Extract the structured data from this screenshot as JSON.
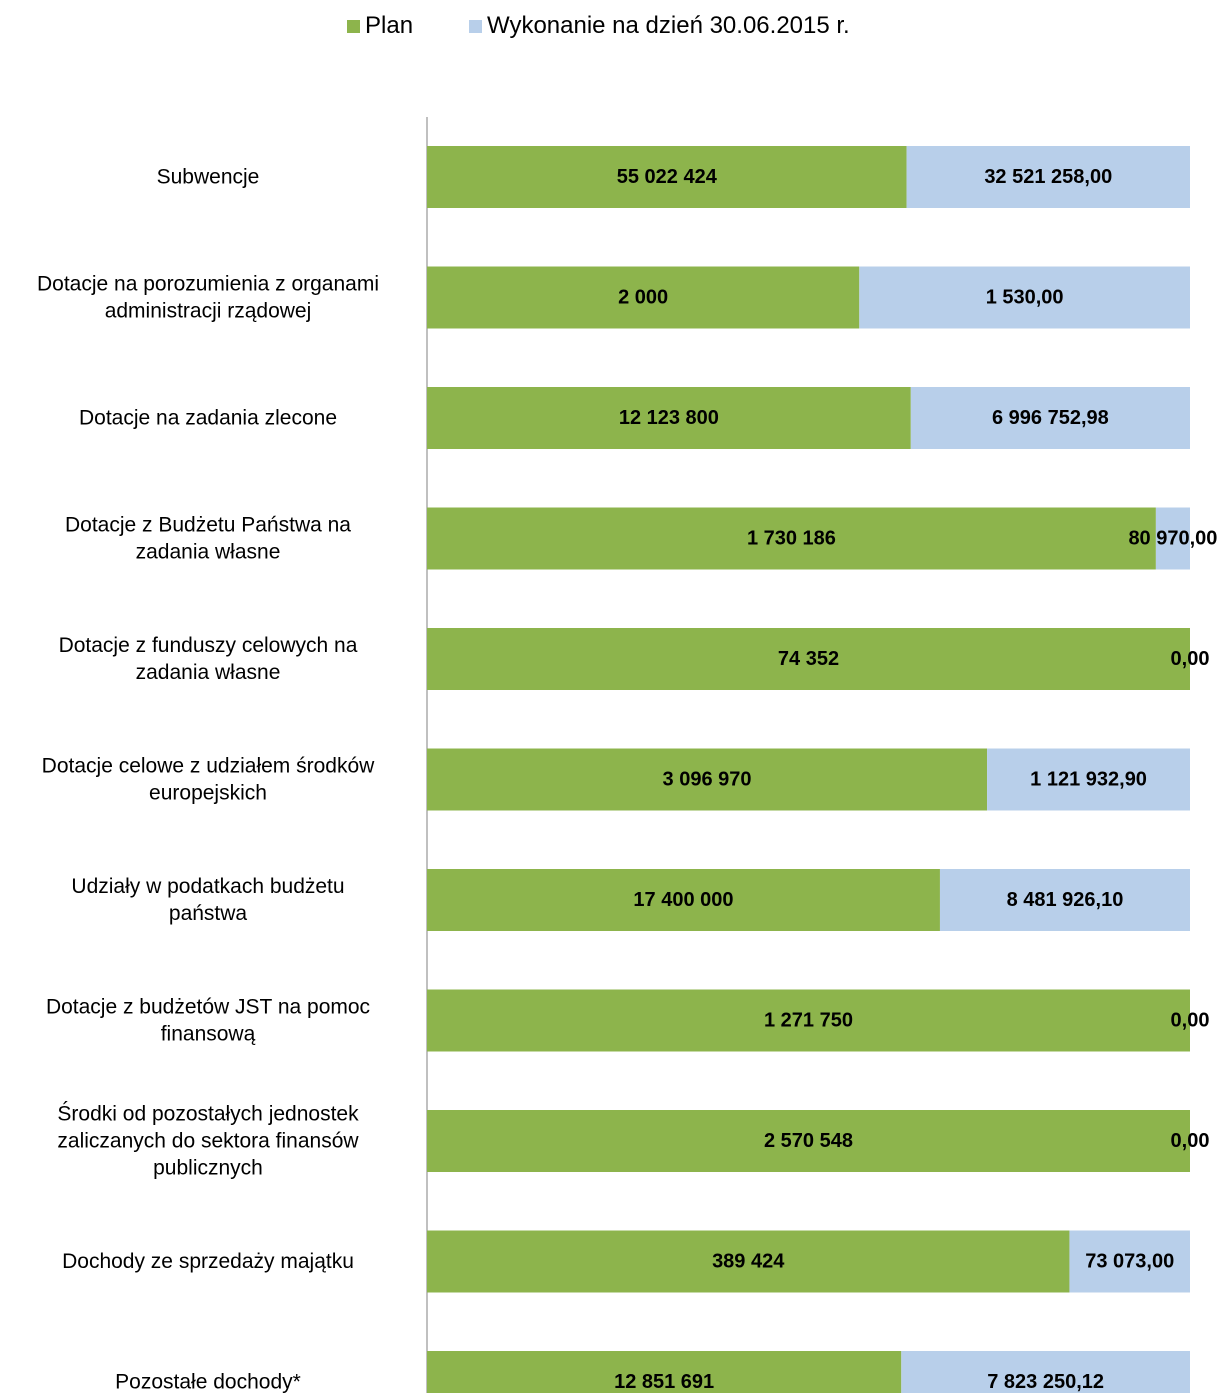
{
  "legend": {
    "plan_label": "Plan",
    "execution_label": "Wykonanie na dzień 30.06.2015 r."
  },
  "colors": {
    "plan": "#8db44c",
    "execution": "#b8cfea",
    "axis": "#808080"
  },
  "chart_data": {
    "type": "bar",
    "orientation": "horizontal",
    "stacking": "percent",
    "title": "",
    "xlabel": "",
    "ylabel": "",
    "grid": false,
    "legend_position": "top",
    "categories": [
      "Subwencje",
      "Dotacje na porozumienia z organami administracji rządowej",
      "Dotacje na zadania zlecone",
      "Dotacje z Budżetu Państwa na zadania własne",
      "Dotacje z funduszy celowych na zadania własne",
      "Dotacje celowe z udziałem środków europejskich",
      "Udziały w podatkach budżetu państwa",
      "Dotacje z budżetów JST na pomoc finansową",
      "Środki od pozostałych jednostek zaliczanych do sektora finansów publicznych",
      "Dochody ze sprzedaży majątku",
      "Pozostałe dochody*"
    ],
    "category_lines": [
      [
        "Subwencje"
      ],
      [
        "Dotacje na porozumienia z organami",
        "administracji rządowej"
      ],
      [
        "Dotacje na zadania zlecone"
      ],
      [
        "Dotacje z Budżetu Państwa na",
        "zadania własne"
      ],
      [
        "Dotacje z funduszy celowych na",
        "zadania własne"
      ],
      [
        "Dotacje celowe z udziałem środków",
        "europejskich"
      ],
      [
        "Udziały w podatkach budżetu",
        "państwa"
      ],
      [
        "Dotacje z budżetów JST na pomoc",
        "finansową"
      ],
      [
        "Środki od pozostałych jednostek",
        "zaliczanych do sektora finansów",
        "publicznych"
      ],
      [
        "Dochody ze sprzedaży majątku"
      ],
      [
        "Pozostałe dochody*"
      ]
    ],
    "series": [
      {
        "name": "Plan",
        "values": [
          55022424,
          2000,
          12123800,
          1730186,
          74352,
          3096970,
          17400000,
          1271750,
          2570548,
          389424,
          12851691
        ],
        "labels": [
          "55 022 424",
          "2 000",
          "12 123 800",
          "1 730 186",
          "74 352",
          "3 096 970",
          "17 400 000",
          "1 271 750",
          "2 570 548",
          "389 424",
          "12 851 691"
        ]
      },
      {
        "name": "Wykonanie na dzień 30.06.2015 r.",
        "values": [
          32521258.0,
          1530.0,
          6996752.98,
          80970.0,
          0.0,
          1121932.9,
          8481926.1,
          0.0,
          0.0,
          73073.0,
          7823250.12
        ],
        "labels": [
          "32 521 258,00",
          "1 530,00",
          "6 996 752,98",
          "80 970,00",
          "0,00",
          "1 121 932,90",
          "8 481 926,10",
          "0,00",
          "0,00",
          "73 073,00",
          "7 823 250,12"
        ]
      }
    ]
  }
}
